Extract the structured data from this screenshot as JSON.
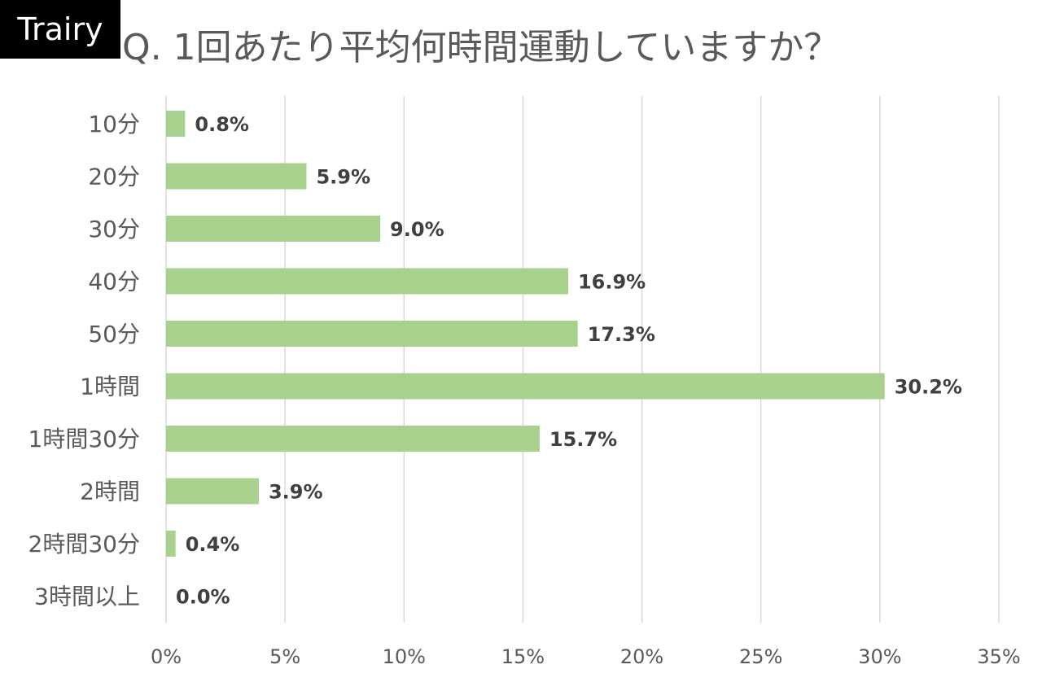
{
  "brand": {
    "logo_text": "Trairy"
  },
  "chart_data": {
    "type": "bar",
    "orientation": "horizontal",
    "title": "Q. 1回あたり平均何時間運動していますか？",
    "categories": [
      "10分",
      "20分",
      "30分",
      "40分",
      "50分",
      "1時間",
      "1時間30分",
      "2時間",
      "2時間30分",
      "3時間以上"
    ],
    "values": [
      0.8,
      5.9,
      9.0,
      16.9,
      17.3,
      30.2,
      15.7,
      3.9,
      0.4,
      0.0
    ],
    "data_labels": [
      "0.8%",
      "5.9%",
      "9.0%",
      "16.9%",
      "17.3%",
      "30.2%",
      "15.7%",
      "3.9%",
      "0.4%",
      "0.0%"
    ],
    "x_ticks": [
      "0%",
      "5%",
      "10%",
      "15%",
      "20%",
      "25%",
      "30%",
      "35%"
    ],
    "xlim": [
      0,
      35
    ],
    "xlabel": "",
    "ylabel": "",
    "grid": "vertical",
    "legend": "none",
    "colors": {
      "bar": "#a9d18e",
      "grid": "#d9d9d9",
      "text": "#595959",
      "data_label": "#404040"
    }
  }
}
